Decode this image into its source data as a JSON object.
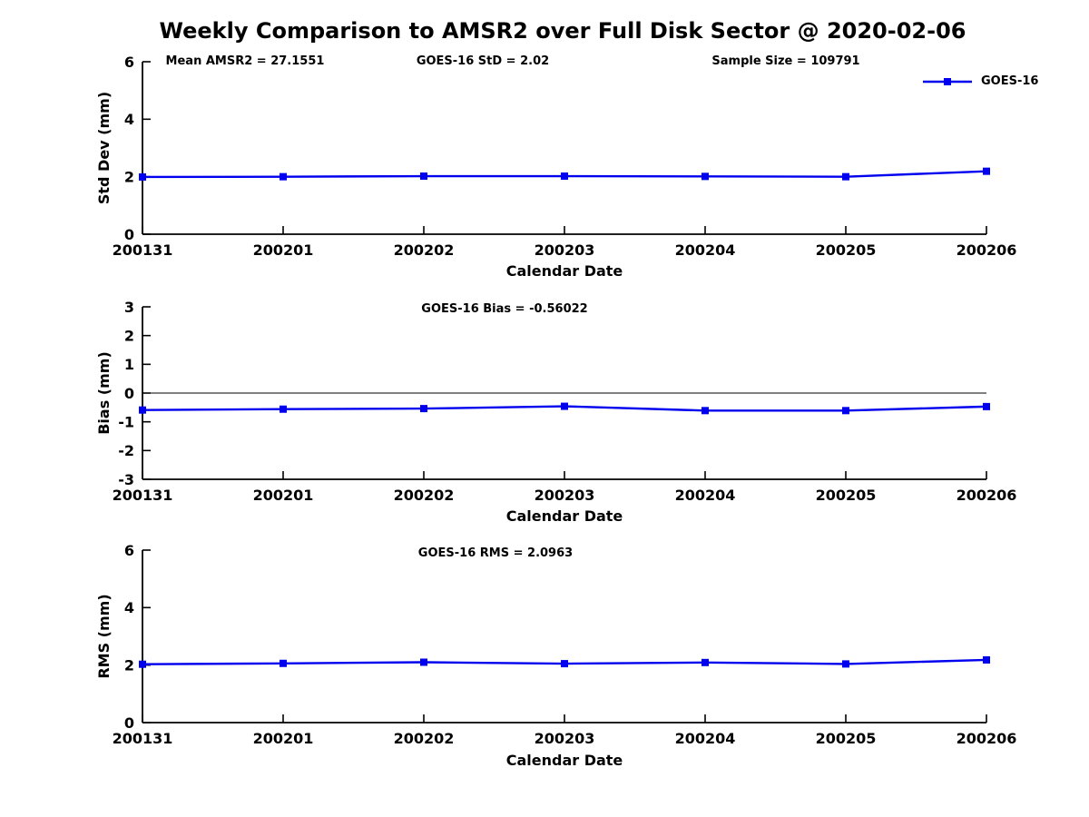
{
  "figure_title": "Weekly Comparison to AMSR2 over Full Disk Sector @ 2020-02-06",
  "legend": {
    "label": "GOES-16",
    "color": "#0000ee"
  },
  "axis_color": "#000000",
  "chart_data": [
    {
      "type": "line",
      "name": "std-dev-subplot",
      "categories": [
        "200131",
        "200201",
        "200202",
        "200203",
        "200204",
        "200205",
        "200206"
      ],
      "series": [
        {
          "name": "GOES-16",
          "values": [
            1.99,
            2.0,
            2.02,
            2.02,
            2.01,
            2.0,
            2.19
          ]
        }
      ],
      "ylabel": "Std Dev (mm)",
      "xlabel": "Calendar Date",
      "ylim": [
        0,
        6
      ],
      "yticks": [
        0,
        2,
        4,
        6
      ],
      "zero_line": false,
      "grid": false,
      "line_color": "#0000ee",
      "marker": "square",
      "annotations": [
        "Mean AMSR2 = 27.1551",
        "GOES-16 StD = 2.02",
        "Sample Size = 109791"
      ]
    },
    {
      "type": "line",
      "name": "bias-subplot",
      "categories": [
        "200131",
        "200201",
        "200202",
        "200203",
        "200204",
        "200205",
        "200206"
      ],
      "series": [
        {
          "name": "GOES-16",
          "values": [
            -0.59,
            -0.56,
            -0.54,
            -0.46,
            -0.61,
            -0.61,
            -0.47
          ]
        }
      ],
      "ylabel": "Bias (mm)",
      "xlabel": "Calendar Date",
      "ylim": [
        -3,
        3
      ],
      "yticks": [
        -3,
        -2,
        -1,
        0,
        1,
        2,
        3
      ],
      "zero_line": true,
      "grid": false,
      "line_color": "#0000ee",
      "marker": "square",
      "annotations": [
        "GOES-16 Bias  = -0.56022"
      ]
    },
    {
      "type": "line",
      "name": "rms-subplot",
      "categories": [
        "200131",
        "200201",
        "200202",
        "200203",
        "200204",
        "200205",
        "200206"
      ],
      "series": [
        {
          "name": "GOES-16",
          "values": [
            2.03,
            2.06,
            2.1,
            2.05,
            2.09,
            2.04,
            2.18
          ]
        }
      ],
      "ylabel": "RMS (mm)",
      "xlabel": "Calendar Date",
      "ylim": [
        0,
        6
      ],
      "yticks": [
        0,
        2,
        4,
        6
      ],
      "zero_line": false,
      "grid": false,
      "line_color": "#0000ee",
      "marker": "square",
      "annotations": [
        "GOES-16 RMS = 2.0963"
      ]
    }
  ]
}
